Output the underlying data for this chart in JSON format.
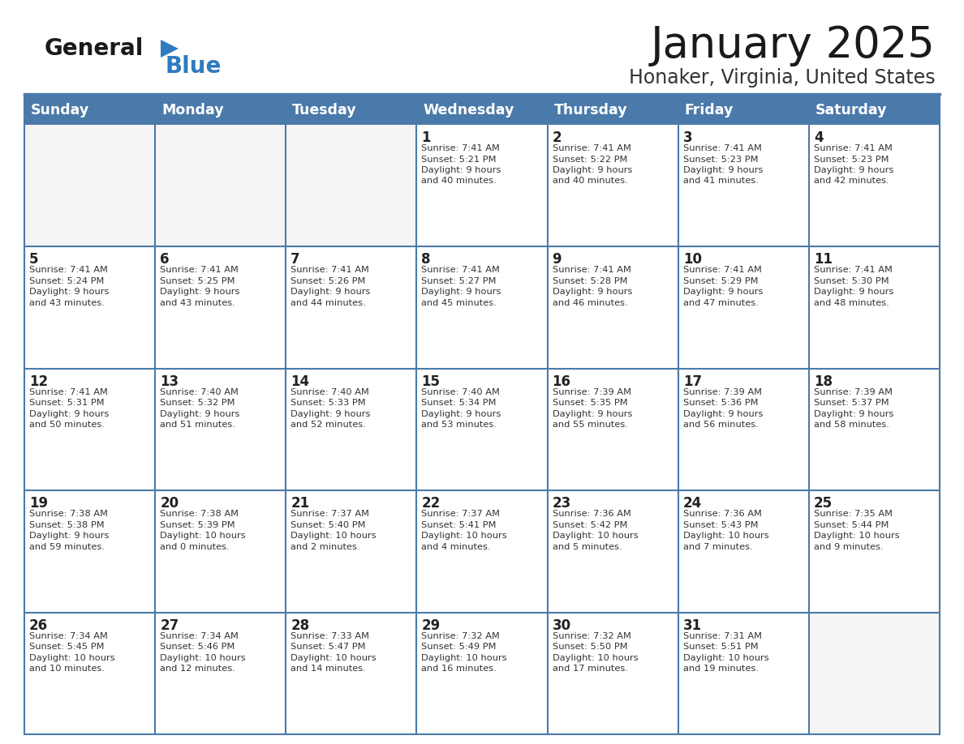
{
  "title": "January 2025",
  "subtitle": "Honaker, Virginia, United States",
  "days_of_week": [
    "Sunday",
    "Monday",
    "Tuesday",
    "Wednesday",
    "Thursday",
    "Friday",
    "Saturday"
  ],
  "header_bg": "#4a7aaa",
  "header_text_color": "#ffffff",
  "cell_bg": "#ffffff",
  "cell_bg_empty": "#f5f5f5",
  "cell_text_color": "#333333",
  "day_num_color": "#222222",
  "grid_color": "#4a7aaa",
  "row_sep_color": "#4a7aaa",
  "title_color": "#1a1a1a",
  "subtitle_color": "#333333",
  "logo_general_color": "#1a1a1a",
  "logo_blue_color": "#2e7bbf",
  "weeks": [
    [
      {
        "day": null,
        "info": ""
      },
      {
        "day": null,
        "info": ""
      },
      {
        "day": null,
        "info": ""
      },
      {
        "day": 1,
        "info": "Sunrise: 7:41 AM\nSunset: 5:21 PM\nDaylight: 9 hours\nand 40 minutes."
      },
      {
        "day": 2,
        "info": "Sunrise: 7:41 AM\nSunset: 5:22 PM\nDaylight: 9 hours\nand 40 minutes."
      },
      {
        "day": 3,
        "info": "Sunrise: 7:41 AM\nSunset: 5:23 PM\nDaylight: 9 hours\nand 41 minutes."
      },
      {
        "day": 4,
        "info": "Sunrise: 7:41 AM\nSunset: 5:23 PM\nDaylight: 9 hours\nand 42 minutes."
      }
    ],
    [
      {
        "day": 5,
        "info": "Sunrise: 7:41 AM\nSunset: 5:24 PM\nDaylight: 9 hours\nand 43 minutes."
      },
      {
        "day": 6,
        "info": "Sunrise: 7:41 AM\nSunset: 5:25 PM\nDaylight: 9 hours\nand 43 minutes."
      },
      {
        "day": 7,
        "info": "Sunrise: 7:41 AM\nSunset: 5:26 PM\nDaylight: 9 hours\nand 44 minutes."
      },
      {
        "day": 8,
        "info": "Sunrise: 7:41 AM\nSunset: 5:27 PM\nDaylight: 9 hours\nand 45 minutes."
      },
      {
        "day": 9,
        "info": "Sunrise: 7:41 AM\nSunset: 5:28 PM\nDaylight: 9 hours\nand 46 minutes."
      },
      {
        "day": 10,
        "info": "Sunrise: 7:41 AM\nSunset: 5:29 PM\nDaylight: 9 hours\nand 47 minutes."
      },
      {
        "day": 11,
        "info": "Sunrise: 7:41 AM\nSunset: 5:30 PM\nDaylight: 9 hours\nand 48 minutes."
      }
    ],
    [
      {
        "day": 12,
        "info": "Sunrise: 7:41 AM\nSunset: 5:31 PM\nDaylight: 9 hours\nand 50 minutes."
      },
      {
        "day": 13,
        "info": "Sunrise: 7:40 AM\nSunset: 5:32 PM\nDaylight: 9 hours\nand 51 minutes."
      },
      {
        "day": 14,
        "info": "Sunrise: 7:40 AM\nSunset: 5:33 PM\nDaylight: 9 hours\nand 52 minutes."
      },
      {
        "day": 15,
        "info": "Sunrise: 7:40 AM\nSunset: 5:34 PM\nDaylight: 9 hours\nand 53 minutes."
      },
      {
        "day": 16,
        "info": "Sunrise: 7:39 AM\nSunset: 5:35 PM\nDaylight: 9 hours\nand 55 minutes."
      },
      {
        "day": 17,
        "info": "Sunrise: 7:39 AM\nSunset: 5:36 PM\nDaylight: 9 hours\nand 56 minutes."
      },
      {
        "day": 18,
        "info": "Sunrise: 7:39 AM\nSunset: 5:37 PM\nDaylight: 9 hours\nand 58 minutes."
      }
    ],
    [
      {
        "day": 19,
        "info": "Sunrise: 7:38 AM\nSunset: 5:38 PM\nDaylight: 9 hours\nand 59 minutes."
      },
      {
        "day": 20,
        "info": "Sunrise: 7:38 AM\nSunset: 5:39 PM\nDaylight: 10 hours\nand 0 minutes."
      },
      {
        "day": 21,
        "info": "Sunrise: 7:37 AM\nSunset: 5:40 PM\nDaylight: 10 hours\nand 2 minutes."
      },
      {
        "day": 22,
        "info": "Sunrise: 7:37 AM\nSunset: 5:41 PM\nDaylight: 10 hours\nand 4 minutes."
      },
      {
        "day": 23,
        "info": "Sunrise: 7:36 AM\nSunset: 5:42 PM\nDaylight: 10 hours\nand 5 minutes."
      },
      {
        "day": 24,
        "info": "Sunrise: 7:36 AM\nSunset: 5:43 PM\nDaylight: 10 hours\nand 7 minutes."
      },
      {
        "day": 25,
        "info": "Sunrise: 7:35 AM\nSunset: 5:44 PM\nDaylight: 10 hours\nand 9 minutes."
      }
    ],
    [
      {
        "day": 26,
        "info": "Sunrise: 7:34 AM\nSunset: 5:45 PM\nDaylight: 10 hours\nand 10 minutes."
      },
      {
        "day": 27,
        "info": "Sunrise: 7:34 AM\nSunset: 5:46 PM\nDaylight: 10 hours\nand 12 minutes."
      },
      {
        "day": 28,
        "info": "Sunrise: 7:33 AM\nSunset: 5:47 PM\nDaylight: 10 hours\nand 14 minutes."
      },
      {
        "day": 29,
        "info": "Sunrise: 7:32 AM\nSunset: 5:49 PM\nDaylight: 10 hours\nand 16 minutes."
      },
      {
        "day": 30,
        "info": "Sunrise: 7:32 AM\nSunset: 5:50 PM\nDaylight: 10 hours\nand 17 minutes."
      },
      {
        "day": 31,
        "info": "Sunrise: 7:31 AM\nSunset: 5:51 PM\nDaylight: 10 hours\nand 19 minutes."
      },
      {
        "day": null,
        "info": ""
      }
    ]
  ]
}
